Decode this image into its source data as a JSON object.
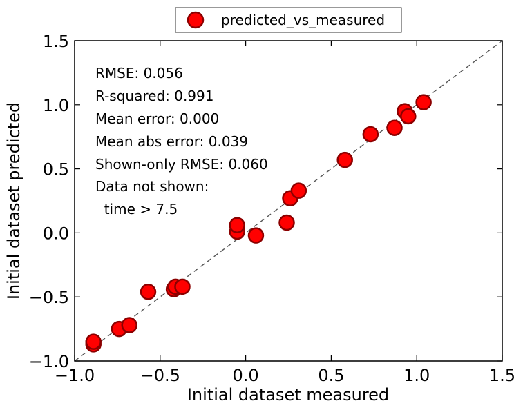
{
  "chart_data": {
    "type": "scatter",
    "title": "",
    "xlabel": "Initial dataset measured",
    "ylabel": "Initial dataset predicted",
    "xlim": [
      -1.0,
      1.5
    ],
    "ylim": [
      -1.0,
      1.5
    ],
    "x_ticks": [
      -1.0,
      -0.5,
      0.0,
      0.5,
      1.0,
      1.5
    ],
    "y_ticks": [
      -1.0,
      -0.5,
      0.0,
      0.5,
      1.0,
      1.5
    ],
    "x_tick_labels": [
      "−1.0",
      "−0.5",
      "0.0",
      "0.5",
      "1.0",
      "1.5"
    ],
    "y_tick_labels": [
      "−1.0",
      "−0.5",
      "0.0",
      "0.5",
      "1.0",
      "1.5"
    ],
    "grid": false,
    "legend_position": "top-center (above plot)",
    "reference_line": {
      "type": "y=x",
      "style": "dashed",
      "color": "#555555"
    },
    "series": [
      {
        "name": "predicted_vs_measured",
        "color": "#ff0000",
        "edge_color": "#8b0000",
        "x": [
          -0.89,
          -0.89,
          -0.74,
          -0.68,
          -0.57,
          -0.42,
          -0.41,
          -0.37,
          -0.05,
          -0.05,
          0.06,
          0.24,
          0.26,
          0.31,
          0.58,
          0.73,
          0.87,
          0.93,
          0.95,
          1.04
        ],
        "y": [
          -0.87,
          -0.85,
          -0.75,
          -0.72,
          -0.46,
          -0.44,
          -0.42,
          -0.42,
          0.01,
          0.06,
          -0.02,
          0.08,
          0.27,
          0.33,
          0.57,
          0.77,
          0.82,
          0.95,
          0.91,
          1.02
        ]
      }
    ],
    "annotations": [
      "RMSE: 0.056",
      "R-squared: 0.991",
      "Mean error: 0.000",
      "Mean abs error: 0.039",
      "Shown-only RMSE: 0.060",
      "Data not shown:",
      "  time > 7.5"
    ]
  }
}
